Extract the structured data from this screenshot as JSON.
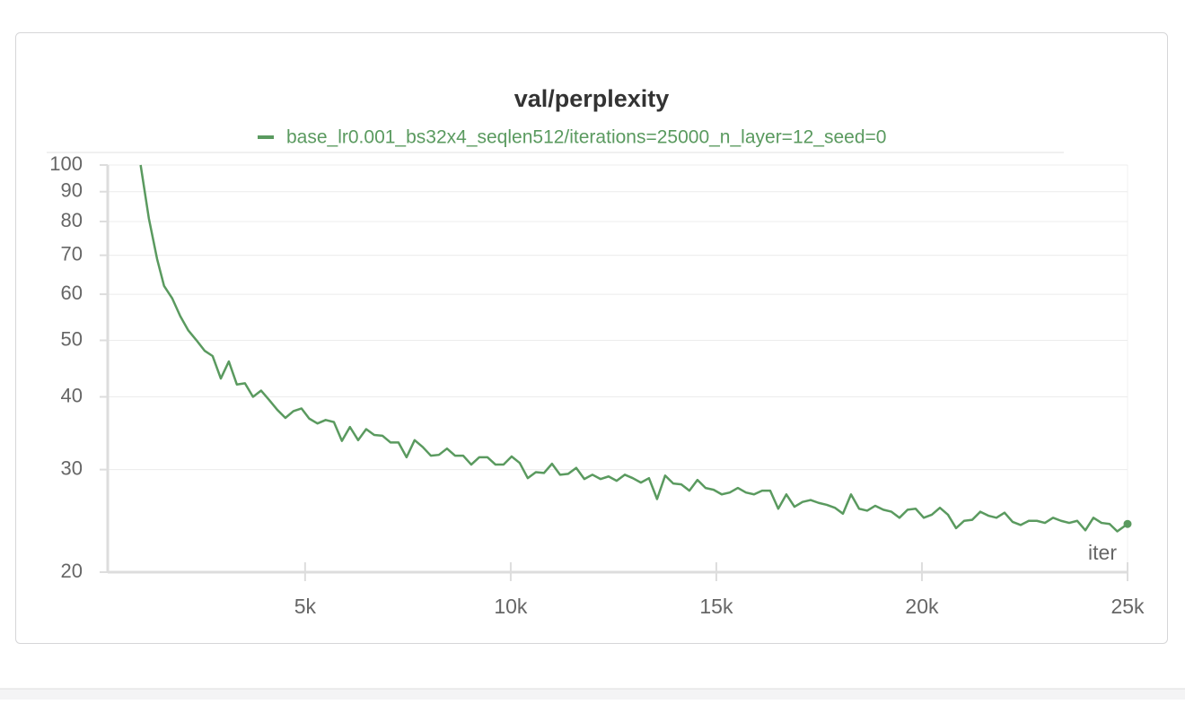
{
  "chart_data": {
    "type": "line",
    "title": "val/perplexity",
    "xlabel": "iter",
    "log_y": true,
    "grid": true,
    "legend": "top",
    "xlim": [
      200,
      25000
    ],
    "xticks": [
      {
        "value": 5000,
        "label": "5k"
      },
      {
        "value": 10000,
        "label": "10k"
      },
      {
        "value": 15000,
        "label": "15k"
      },
      {
        "value": 20000,
        "label": "20k"
      },
      {
        "value": 25000,
        "label": "25k"
      }
    ],
    "ylim": [
      20,
      100
    ],
    "yticks": [
      20,
      30,
      40,
      50,
      60,
      70,
      80,
      90,
      100
    ],
    "x": [
      1000,
      1200,
      1400,
      1570,
      1770,
      1965,
      2160,
      2360,
      2555,
      2750,
      2950,
      3145,
      3340,
      3537,
      3733,
      3930,
      4127,
      4323,
      4520,
      4716,
      4913,
      5100,
      5300,
      5500,
      5700,
      5895,
      6090,
      6290,
      6485,
      6680,
      6880,
      7075,
      7270,
      7467,
      7663,
      7860,
      8057,
      8253,
      8450,
      8646,
      8843,
      9040,
      9236,
      9433,
      9630,
      9826,
      10022,
      10218,
      10415,
      10611,
      10808,
      11004,
      11200,
      11397,
      11593,
      11790,
      11987,
      12183,
      12380,
      12576,
      12773,
      12969,
      13166,
      13362,
      13559,
      13755,
      13952,
      14148,
      14345,
      14541,
      14738,
      14934,
      15131,
      15327,
      15524,
      15720,
      15917,
      16113,
      16310,
      16506,
      16703,
      16900,
      17096,
      17293,
      17489,
      17686,
      17882,
      18079,
      18275,
      18472,
      18668,
      18865,
      19061,
      19258,
      19454,
      19651,
      19847,
      20044,
      20240,
      20437,
      20633,
      20830,
      21026,
      21223,
      21419,
      21616,
      21812,
      22009,
      22205,
      22402,
      22598,
      22795,
      22991,
      23188,
      23384,
      23581,
      23777,
      23974,
      24170,
      24367,
      24563,
      24750,
      25000
    ],
    "series": [
      {
        "name": "base_lr0.001_bs32x4_seqlen512/iterations=25000_n_layer=12_seed=0",
        "color": "#5a9a5f",
        "values": [
          100,
          81,
          69,
          62,
          59,
          55,
          52,
          50,
          48,
          47,
          43,
          46,
          42,
          42.2,
          40,
          41,
          39.5,
          38,
          36.8,
          37.8,
          38.2,
          36.7,
          36,
          36.5,
          36.2,
          33.6,
          35.5,
          33.7,
          35.2,
          34.4,
          34.3,
          33.4,
          33.4,
          31.5,
          33.7,
          32.8,
          31.7,
          31.8,
          32.6,
          31.7,
          31.7,
          30.6,
          31.5,
          31.5,
          30.6,
          30.6,
          31.6,
          30.8,
          29,
          29.7,
          29.6,
          30.7,
          29.4,
          29.5,
          30.2,
          28.9,
          29.4,
          28.9,
          29.2,
          28.7,
          29.4,
          29,
          28.5,
          29,
          26.7,
          29.3,
          28.4,
          28.3,
          27.6,
          28.8,
          27.9,
          27.7,
          27.2,
          27.4,
          27.9,
          27.4,
          27.2,
          27.6,
          27.6,
          25.7,
          27.2,
          25.9,
          26.4,
          26.6,
          26.3,
          26.1,
          25.8,
          25.2,
          27.2,
          25.7,
          25.5,
          26,
          25.6,
          25.4,
          24.8,
          25.6,
          25.7,
          24.8,
          25.1,
          25.8,
          25.1,
          23.8,
          24.5,
          24.6,
          25.4,
          25,
          24.8,
          25.3,
          24.4,
          24.1,
          24.5,
          24.5,
          24.3,
          24.8,
          24.5,
          24.3,
          24.5,
          23.6,
          24.8,
          24.3,
          24.2,
          23.5,
          24.2
        ]
      }
    ]
  }
}
